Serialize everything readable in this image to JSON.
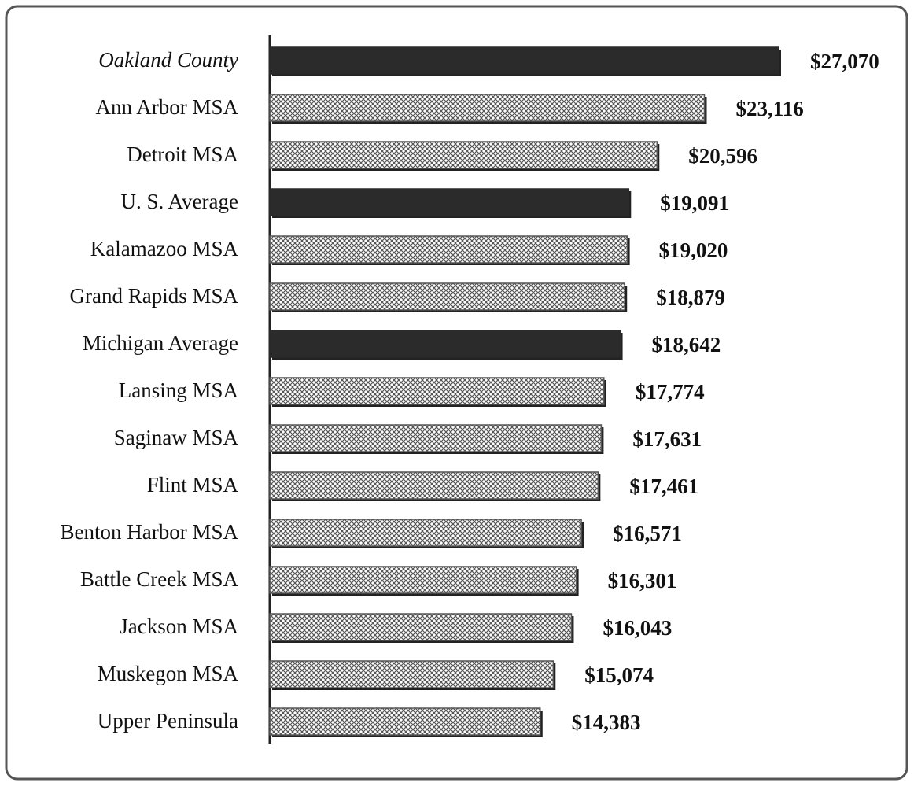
{
  "chart_data": {
    "type": "bar",
    "orientation": "horizontal",
    "categories": [
      "Oakland County",
      "Ann Arbor MSA",
      "Detroit MSA",
      "U. S. Average",
      "Kalamazoo MSA",
      "Grand Rapids MSA",
      "Michigan Average",
      "Lansing MSA",
      "Saginaw MSA",
      "Flint MSA",
      "Benton Harbor MSA",
      "Battle Creek MSA",
      "Jackson MSA",
      "Muskegon MSA",
      "Upper Peninsula"
    ],
    "values": [
      27070,
      23116,
      20596,
      19091,
      19020,
      18879,
      18642,
      17774,
      17631,
      17461,
      16571,
      16301,
      16043,
      15074,
      14383
    ],
    "value_labels": [
      "$27,070",
      "$23,116",
      "$20,596",
      "$19,091",
      "$19,020",
      "$18,879",
      "$18,642",
      "$17,774",
      "$17,631",
      "$17,461",
      "$16,571",
      "$16,301",
      "$16,043",
      "$15,074",
      "$14,383"
    ],
    "colors": [
      "#2b2b2b",
      "#555555",
      "#555555",
      "#2b2b2b",
      "#555555",
      "#555555",
      "#2b2b2b",
      "#555555",
      "#555555",
      "#555555",
      "#555555",
      "#555555",
      "#555555",
      "#555555",
      "#555555"
    ]
  }
}
